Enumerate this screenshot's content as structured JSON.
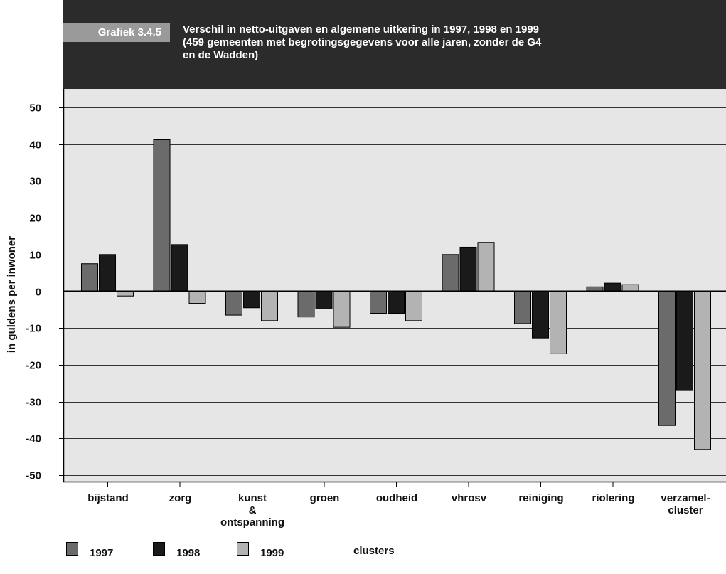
{
  "figure_label": "Grafiek 3.4.5",
  "title_lines": [
    "Verschil in netto-uitgaven en algemene uitkering in 1997, 1998 en 1999",
    "(459 gemeenten met begrotingsgegevens voor alle jaren, zonder de G4",
    "en de Wadden)"
  ],
  "x_axis_title": "clusters",
  "colors": {
    "header_bg": "#2b2b2b",
    "plot_bg": "#e6e6e6",
    "series": [
      "#6b6b6b",
      "#1a1a1a",
      "#b3b3b3"
    ]
  },
  "chart_data": {
    "type": "bar",
    "title": "Verschil in netto-uitgaven en algemene uitkering in 1997, 1998 en 1999 (459 gemeenten met begrotingsgegevens voor alle jaren, zonder de G4 en de Wadden)",
    "xlabel": "clusters",
    "ylabel": "in guldens per inwoner",
    "ylim": [
      -50,
      50
    ],
    "yticks": [
      50,
      40,
      30,
      20,
      10,
      0,
      -10,
      -20,
      -30,
      -40,
      -50
    ],
    "grid": true,
    "legend_position": "bottom-left",
    "categories": [
      [
        "bijstand"
      ],
      [
        "zorg"
      ],
      [
        "kunst",
        "&",
        "ontspanning"
      ],
      [
        "groen"
      ],
      [
        "oudheid"
      ],
      [
        "vhrosv"
      ],
      [
        "reiniging"
      ],
      [
        "riolering"
      ],
      [
        "verzamel-",
        "cluster"
      ]
    ],
    "series": [
      {
        "name": "1997",
        "values": [
          7.5,
          41.2,
          -6.5,
          -7.0,
          -6.0,
          10.0,
          -8.8,
          1.2,
          -36.5
        ]
      },
      {
        "name": "1998",
        "values": [
          10.0,
          12.7,
          -4.5,
          -4.8,
          -6.0,
          12.0,
          -12.7,
          2.2,
          -27.0
        ]
      },
      {
        "name": "1999",
        "values": [
          -1.3,
          -3.3,
          -8.0,
          -9.8,
          -8.0,
          13.3,
          -17.0,
          1.8,
          -43.0
        ]
      }
    ]
  }
}
